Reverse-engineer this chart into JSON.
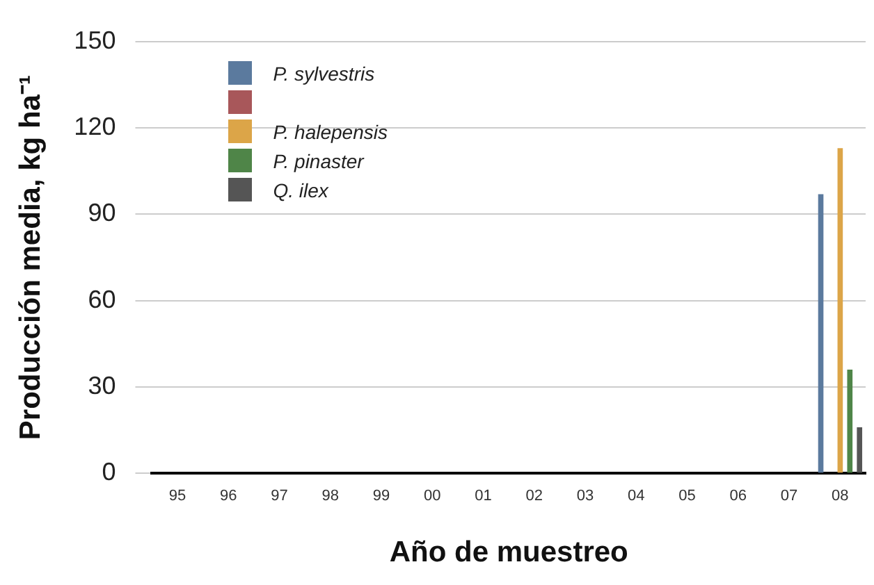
{
  "chart_data": {
    "type": "bar",
    "xlabel": "Año de muestreo",
    "ylabel": "Producción media, kg ha⁻¹",
    "categories": [
      "95",
      "96",
      "97",
      "98",
      "99",
      "00",
      "01",
      "02",
      "03",
      "04",
      "05",
      "06",
      "07",
      "08"
    ],
    "series": [
      {
        "name": "P. sylvestris",
        "color": "#5b7a9e",
        "values": [
          null,
          null,
          null,
          null,
          null,
          null,
          null,
          null,
          null,
          null,
          null,
          null,
          null,
          97
        ]
      },
      {
        "color": "#a8575a",
        "values": [
          null,
          null,
          null,
          null,
          null,
          null,
          null,
          null,
          null,
          null,
          null,
          null,
          null,
          null
        ]
      },
      {
        "name": "P. halepensis",
        "color": "#dca548",
        "values": [
          null,
          null,
          null,
          null,
          null,
          null,
          null,
          null,
          null,
          null,
          null,
          null,
          null,
          113
        ]
      },
      {
        "name": "P. pinaster",
        "color": "#4f8548",
        "values": [
          null,
          null,
          null,
          null,
          null,
          null,
          null,
          null,
          null,
          null,
          null,
          null,
          null,
          36
        ]
      },
      {
        "name": "Q. ilex",
        "color": "#555555",
        "values": [
          null,
          null,
          null,
          null,
          null,
          null,
          null,
          null,
          null,
          null,
          null,
          null,
          null,
          16
        ]
      }
    ],
    "ylim": [
      0,
      150
    ],
    "yticks": [
      0,
      30,
      60,
      90,
      120,
      150
    ],
    "grid": "y",
    "legend": "top left"
  }
}
